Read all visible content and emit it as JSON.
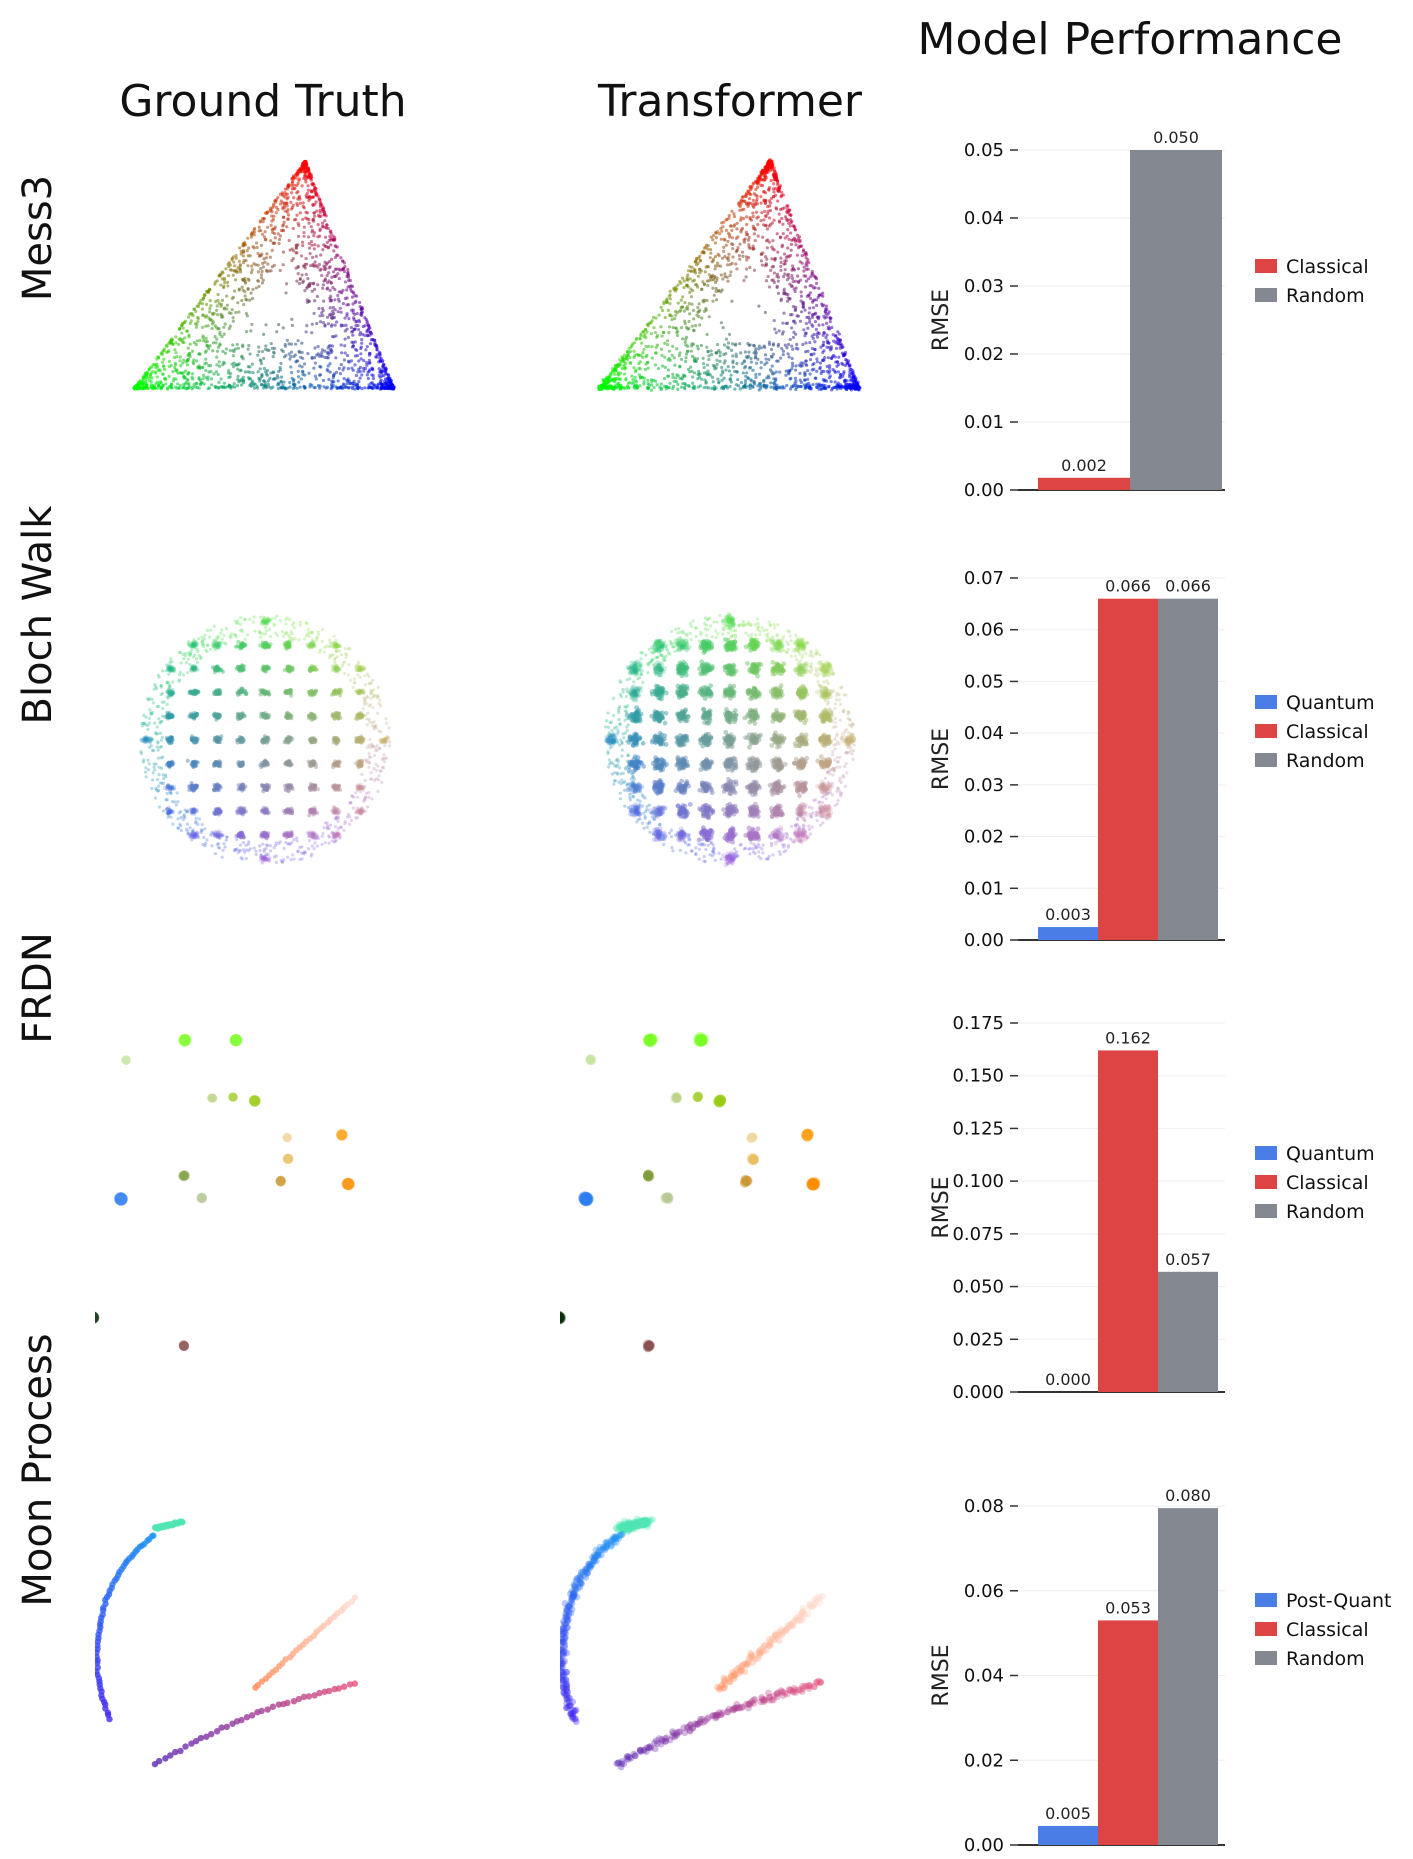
{
  "headers": {
    "ground_truth": "Ground Truth",
    "transformer": "Transformer",
    "model_performance": "Model Performance"
  },
  "rows": [
    {
      "label": "Mess3"
    },
    {
      "label": "Bloch Walk"
    },
    {
      "label": "FRDN"
    },
    {
      "label": "Moon Process"
    }
  ],
  "colors": {
    "Quantum": "#4a7ee6",
    "Post-Quant": "#4a7ee6",
    "Classical": "#dd4444",
    "Random": "#838891",
    "axis": "#333333"
  },
  "chart_data": [
    {
      "type": "bar",
      "panel": "Mess3",
      "ylabel": "RMSE",
      "ylim": [
        0,
        0.05
      ],
      "yticks": [
        "0.00",
        "0.01",
        "0.02",
        "0.03",
        "0.04",
        "0.05"
      ],
      "series": [
        {
          "name": "Classical",
          "value": 0.0018,
          "label": "0.002"
        },
        {
          "name": "Random",
          "value": 0.05,
          "label": "0.050"
        }
      ],
      "legend": [
        "Classical",
        "Random"
      ]
    },
    {
      "type": "bar",
      "panel": "Bloch Walk",
      "ylabel": "RMSE",
      "ylim": [
        0,
        0.07
      ],
      "yticks": [
        "0.00",
        "0.01",
        "0.02",
        "0.03",
        "0.04",
        "0.05",
        "0.06",
        "0.07"
      ],
      "series": [
        {
          "name": "Quantum",
          "value": 0.0025,
          "label": "0.003"
        },
        {
          "name": "Classical",
          "value": 0.066,
          "label": "0.066"
        },
        {
          "name": "Random",
          "value": 0.066,
          "label": "0.066"
        }
      ],
      "legend": [
        "Quantum",
        "Classical",
        "Random"
      ]
    },
    {
      "type": "bar",
      "panel": "FRDN",
      "ylabel": "RMSE",
      "ylim": [
        0,
        0.175
      ],
      "yticks": [
        "0.000",
        "0.025",
        "0.050",
        "0.075",
        "0.100",
        "0.125",
        "0.150",
        "0.175"
      ],
      "series": [
        {
          "name": "Quantum",
          "value": 0.0,
          "label": "0.000"
        },
        {
          "name": "Classical",
          "value": 0.162,
          "label": "0.162"
        },
        {
          "name": "Random",
          "value": 0.057,
          "label": "0.057"
        }
      ],
      "legend": [
        "Quantum",
        "Classical",
        "Random"
      ]
    },
    {
      "type": "bar",
      "panel": "Moon Process",
      "ylabel": "RMSE",
      "ylim": [
        0,
        0.08
      ],
      "yticks": [
        "0.00",
        "0.02",
        "0.04",
        "0.06",
        "0.08"
      ],
      "series": [
        {
          "name": "Post-Quant",
          "value": 0.0045,
          "label": "0.005"
        },
        {
          "name": "Classical",
          "value": 0.053,
          "label": "0.053"
        },
        {
          "name": "Random",
          "value": 0.0795,
          "label": "0.080"
        }
      ],
      "legend": [
        "Post-Quant",
        "Classical",
        "Random"
      ]
    }
  ]
}
